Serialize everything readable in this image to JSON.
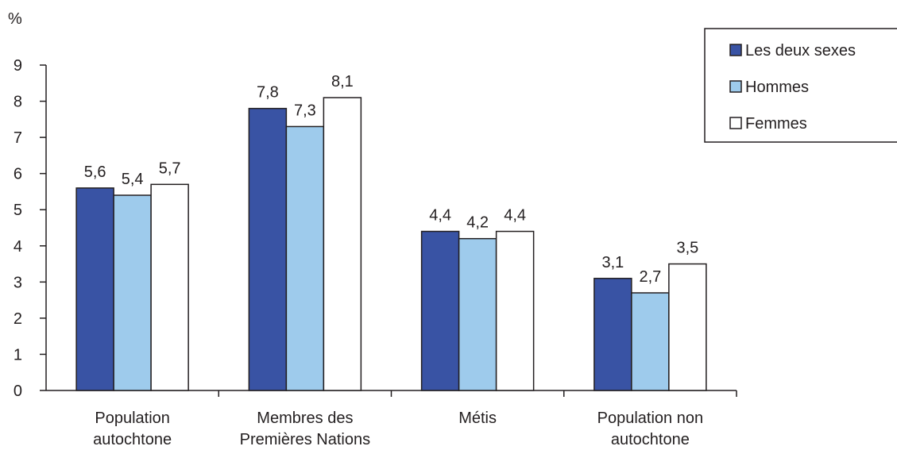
{
  "chart_data": {
    "type": "bar",
    "title": "",
    "xlabel": "",
    "ylabel": "%",
    "ylim": [
      0,
      9
    ],
    "yticks": [
      0,
      1,
      2,
      3,
      4,
      5,
      6,
      7,
      8,
      9
    ],
    "grid": false,
    "legend_position": "top-right",
    "categories": [
      [
        "Population",
        "autochtone"
      ],
      [
        "Membres des",
        "Premières Nations"
      ],
      [
        "Métis"
      ],
      [
        "Population non",
        "autochtone"
      ]
    ],
    "series": [
      {
        "name": "Les deux sexes",
        "color": "#3953a4",
        "values": [
          5.6,
          7.8,
          4.4,
          3.1
        ],
        "labels": [
          "5,6",
          "7,8",
          "4,4",
          "3,1"
        ]
      },
      {
        "name": "Hommes",
        "color": "#9ecbec",
        "values": [
          5.4,
          7.3,
          4.2,
          2.7
        ],
        "labels": [
          "5,4",
          "7,3",
          "4,2",
          "2,7"
        ]
      },
      {
        "name": "Femmes",
        "color": "#ffffff",
        "values": [
          5.7,
          8.1,
          4.4,
          3.5
        ],
        "labels": [
          "5,7",
          "8,1",
          "4,4",
          "3,5"
        ]
      }
    ]
  }
}
